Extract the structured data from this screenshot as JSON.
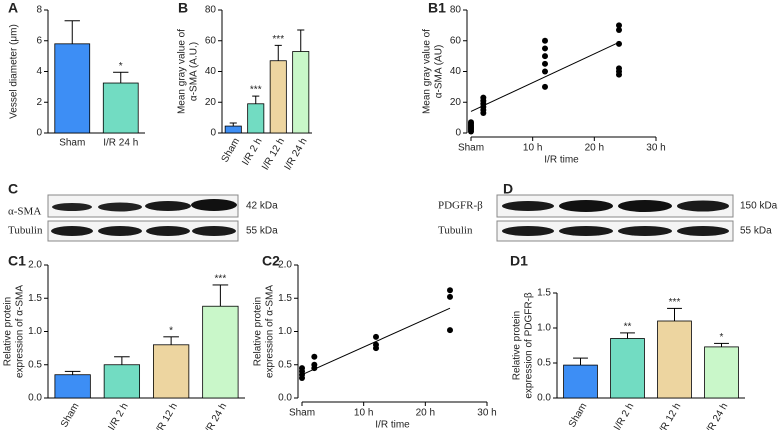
{
  "chart_data": [
    {
      "type": "bar",
      "panel_label": "A",
      "ylabel": [
        "Vessel diameter (μm)"
      ],
      "categories": [
        "Sham",
        "I/R 24 h"
      ],
      "values": [
        5.8,
        3.25
      ],
      "errors": [
        1.5,
        0.7
      ],
      "annotations": [
        null,
        "*"
      ],
      "colors": [
        "#3d8ef5",
        "#72dcc2"
      ],
      "ylim": [
        0,
        8
      ],
      "yticks": [
        0,
        2,
        4,
        6,
        8
      ]
    },
    {
      "type": "bar",
      "panel_label": "B",
      "ylabel": [
        "Mean gray value of",
        "α-SMA (A.U.)"
      ],
      "categories": [
        "Sham",
        "I/R 2 h",
        "I/R 12 h",
        "I/R 24 h"
      ],
      "values": [
        4.5,
        19,
        47,
        53
      ],
      "errors": [
        2,
        5,
        10,
        14
      ],
      "annotations": [
        null,
        "***",
        "***",
        null
      ],
      "colors": [
        "#3d8ef5",
        "#72dcc2",
        "#edd5a0",
        "#c9f7c9"
      ],
      "ylim": [
        0,
        80
      ],
      "yticks": [
        0,
        20,
        40,
        60,
        80
      ]
    },
    {
      "type": "scatter",
      "panel_label": "B1",
      "ylabel": [
        "Mean gray value of",
        "α-SMA (AU)"
      ],
      "xlabel": "I/R time",
      "color": "#000000",
      "x": [
        0,
        0,
        0,
        0,
        0,
        0,
        0,
        2,
        2,
        2,
        2,
        2,
        2,
        12,
        12,
        12,
        12,
        12,
        12,
        24,
        24,
        24,
        24,
        24,
        24
      ],
      "values": [
        1,
        2,
        3,
        4,
        5,
        6,
        7,
        13,
        15,
        17,
        19,
        21,
        23,
        30,
        40,
        45,
        50,
        55,
        60,
        38,
        40,
        42,
        58,
        67,
        70
      ],
      "fit_line": {
        "x": [
          0,
          24
        ],
        "values": [
          14,
          59
        ]
      },
      "xlim": [
        0,
        30
      ],
      "xticks": [
        {
          "value": 0,
          "label": "Sham"
        },
        {
          "value": 10,
          "label": "10 h"
        },
        {
          "value": 20,
          "label": "20 h"
        },
        {
          "value": 30,
          "label": "30 h"
        }
      ],
      "ylim": [
        0,
        80
      ],
      "yticks": [
        0,
        20,
        40,
        60,
        80
      ]
    },
    {
      "type": "bar",
      "panel_label": "C1",
      "ylabel": [
        "Relative protein",
        "expression of α-SMA"
      ],
      "categories": [
        "Sham",
        "I/R 2 h",
        "I/R 12 h",
        "I/R 24 h"
      ],
      "values": [
        0.35,
        0.5,
        0.8,
        1.38
      ],
      "errors": [
        0.05,
        0.12,
        0.12,
        0.32
      ],
      "annotations": [
        null,
        null,
        "*",
        "***"
      ],
      "colors": [
        "#3d8ef5",
        "#72dcc2",
        "#edd5a0",
        "#c9f7c9"
      ],
      "ylim": [
        0,
        2
      ],
      "yticks": [
        {
          "value": 0,
          "label": "0.0"
        },
        0.5,
        {
          "value": 1,
          "label": "1.0"
        },
        1.5,
        {
          "value": 2,
          "label": "2.0"
        }
      ]
    },
    {
      "type": "scatter",
      "panel_label": "C2",
      "ylabel": [
        "Relative protein",
        "expression of α-SMA"
      ],
      "xlabel": "I/R time",
      "color": "#000000",
      "x": [
        0,
        0,
        0,
        0,
        2,
        2,
        2,
        12,
        12,
        12,
        24,
        24,
        24
      ],
      "values": [
        0.3,
        0.35,
        0.4,
        0.45,
        0.45,
        0.5,
        0.62,
        0.75,
        0.8,
        0.92,
        1.02,
        1.52,
        1.62
      ],
      "fit_line": {
        "x": [
          0,
          24
        ],
        "values": [
          0.35,
          1.35
        ]
      },
      "xlim": [
        0,
        30
      ],
      "xticks": [
        {
          "value": 0,
          "label": "Sham"
        },
        {
          "value": 10,
          "label": "10 h"
        },
        {
          "value": 20,
          "label": "20 h"
        },
        {
          "value": 30,
          "label": "30 h"
        }
      ],
      "ylim": [
        0,
        2
      ],
      "yticks": [
        {
          "value": 0,
          "label": "0.0"
        },
        0.5,
        {
          "value": 1,
          "label": "1.0"
        },
        1.5,
        {
          "value": 2,
          "label": "2.0"
        }
      ]
    },
    {
      "type": "bar",
      "panel_label": "D1",
      "ylabel": [
        "Relative protein",
        "expression of PDGFR-β"
      ],
      "categories": [
        "Sham",
        "I/R 2 h",
        "I/R 12 h",
        "I/R 24 h"
      ],
      "values": [
        0.47,
        0.85,
        1.1,
        0.73
      ],
      "errors": [
        0.1,
        0.08,
        0.18,
        0.05
      ],
      "annotations": [
        null,
        "**",
        "***",
        "*"
      ],
      "colors": [
        "#3d8ef5",
        "#72dcc2",
        "#edd5a0",
        "#c9f7c9"
      ],
      "ylim": [
        0,
        1.5
      ],
      "yticks": [
        {
          "value": 0,
          "label": "0.0"
        },
        0.5,
        {
          "value": 1,
          "label": "1.0"
        },
        1.5
      ]
    }
  ],
  "blots": [
    {
      "panel_label": "C",
      "rows": [
        {
          "name": "α-SMA",
          "size": "42 kDa"
        },
        {
          "name": "Tubulin",
          "size": "55 kDa"
        }
      ]
    },
    {
      "panel_label": "D",
      "rows": [
        {
          "name": "PDGFR-β",
          "size": "150 kDa"
        },
        {
          "name": "Tubulin",
          "size": "55 kDa"
        }
      ]
    }
  ]
}
